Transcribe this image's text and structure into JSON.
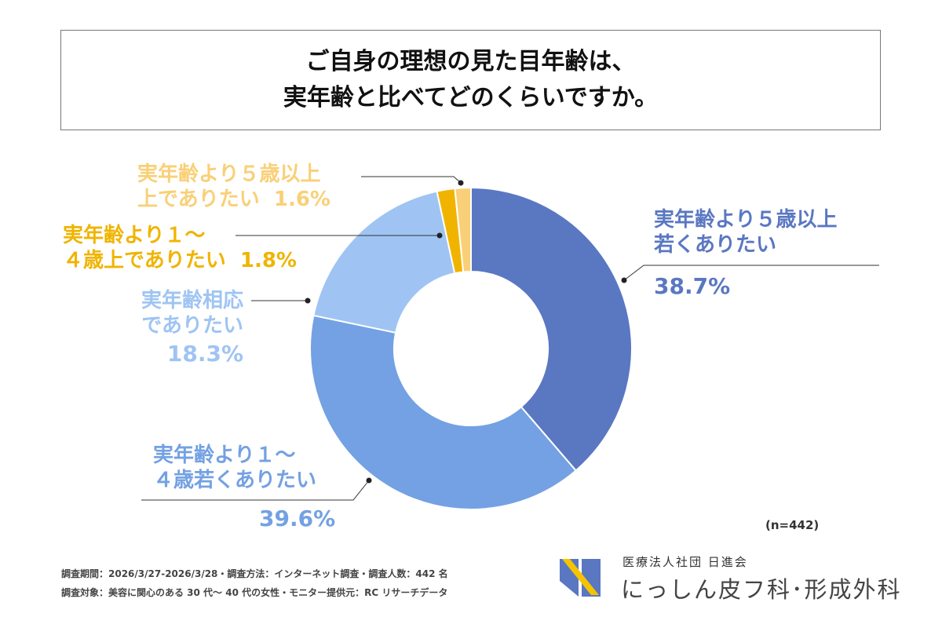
{
  "title": {
    "line1": "ご自身の理想の見た目年齢は、",
    "line2": "実年齢と比べてどのくらいですか。"
  },
  "chart_data": {
    "type": "pie",
    "donut": true,
    "start": "12 o'clock, clockwise",
    "slices": [
      {
        "label_line1": "実年齢より５歳以上",
        "label_line2": "若くありたい",
        "value": 38.7,
        "value_label": "38.7%",
        "color": "#5a77c2"
      },
      {
        "label_line1": "実年齢より１～",
        "label_line2": "４歳若くありたい",
        "value": 39.6,
        "value_label": "39.6%",
        "color": "#73a1e3"
      },
      {
        "label_line1": "実年齢相応",
        "label_line2": "でありたい",
        "value": 18.3,
        "value_label": "18.3%",
        "color": "#9fc4f3"
      },
      {
        "label_line1": "実年齢より１～",
        "label_line2": "４歳上でありたい",
        "value": 1.8,
        "value_label": "1.8%",
        "color": "#f0b400"
      },
      {
        "label_line1": "実年齢より５歳以上",
        "label_line2": "上でありたい",
        "value": 1.6,
        "value_label": "1.6%",
        "color": "#f9d078"
      }
    ],
    "sample": "(n=442)"
  },
  "footer": {
    "line1": "調査期間：2026/3/27-2026/3/28・調査方法：インターネット調査・調査人数：442 名",
    "line2": "調査対象：美容に関心のある 30 代～ 40 代の女性・モニター提供元：RC リサーチデータ"
  },
  "logo": {
    "sub": "医療法人社団 日進会",
    "main": "にっしん皮フ科･形成外科",
    "colors": [
      "#5a77c2",
      "#f5c400"
    ]
  }
}
